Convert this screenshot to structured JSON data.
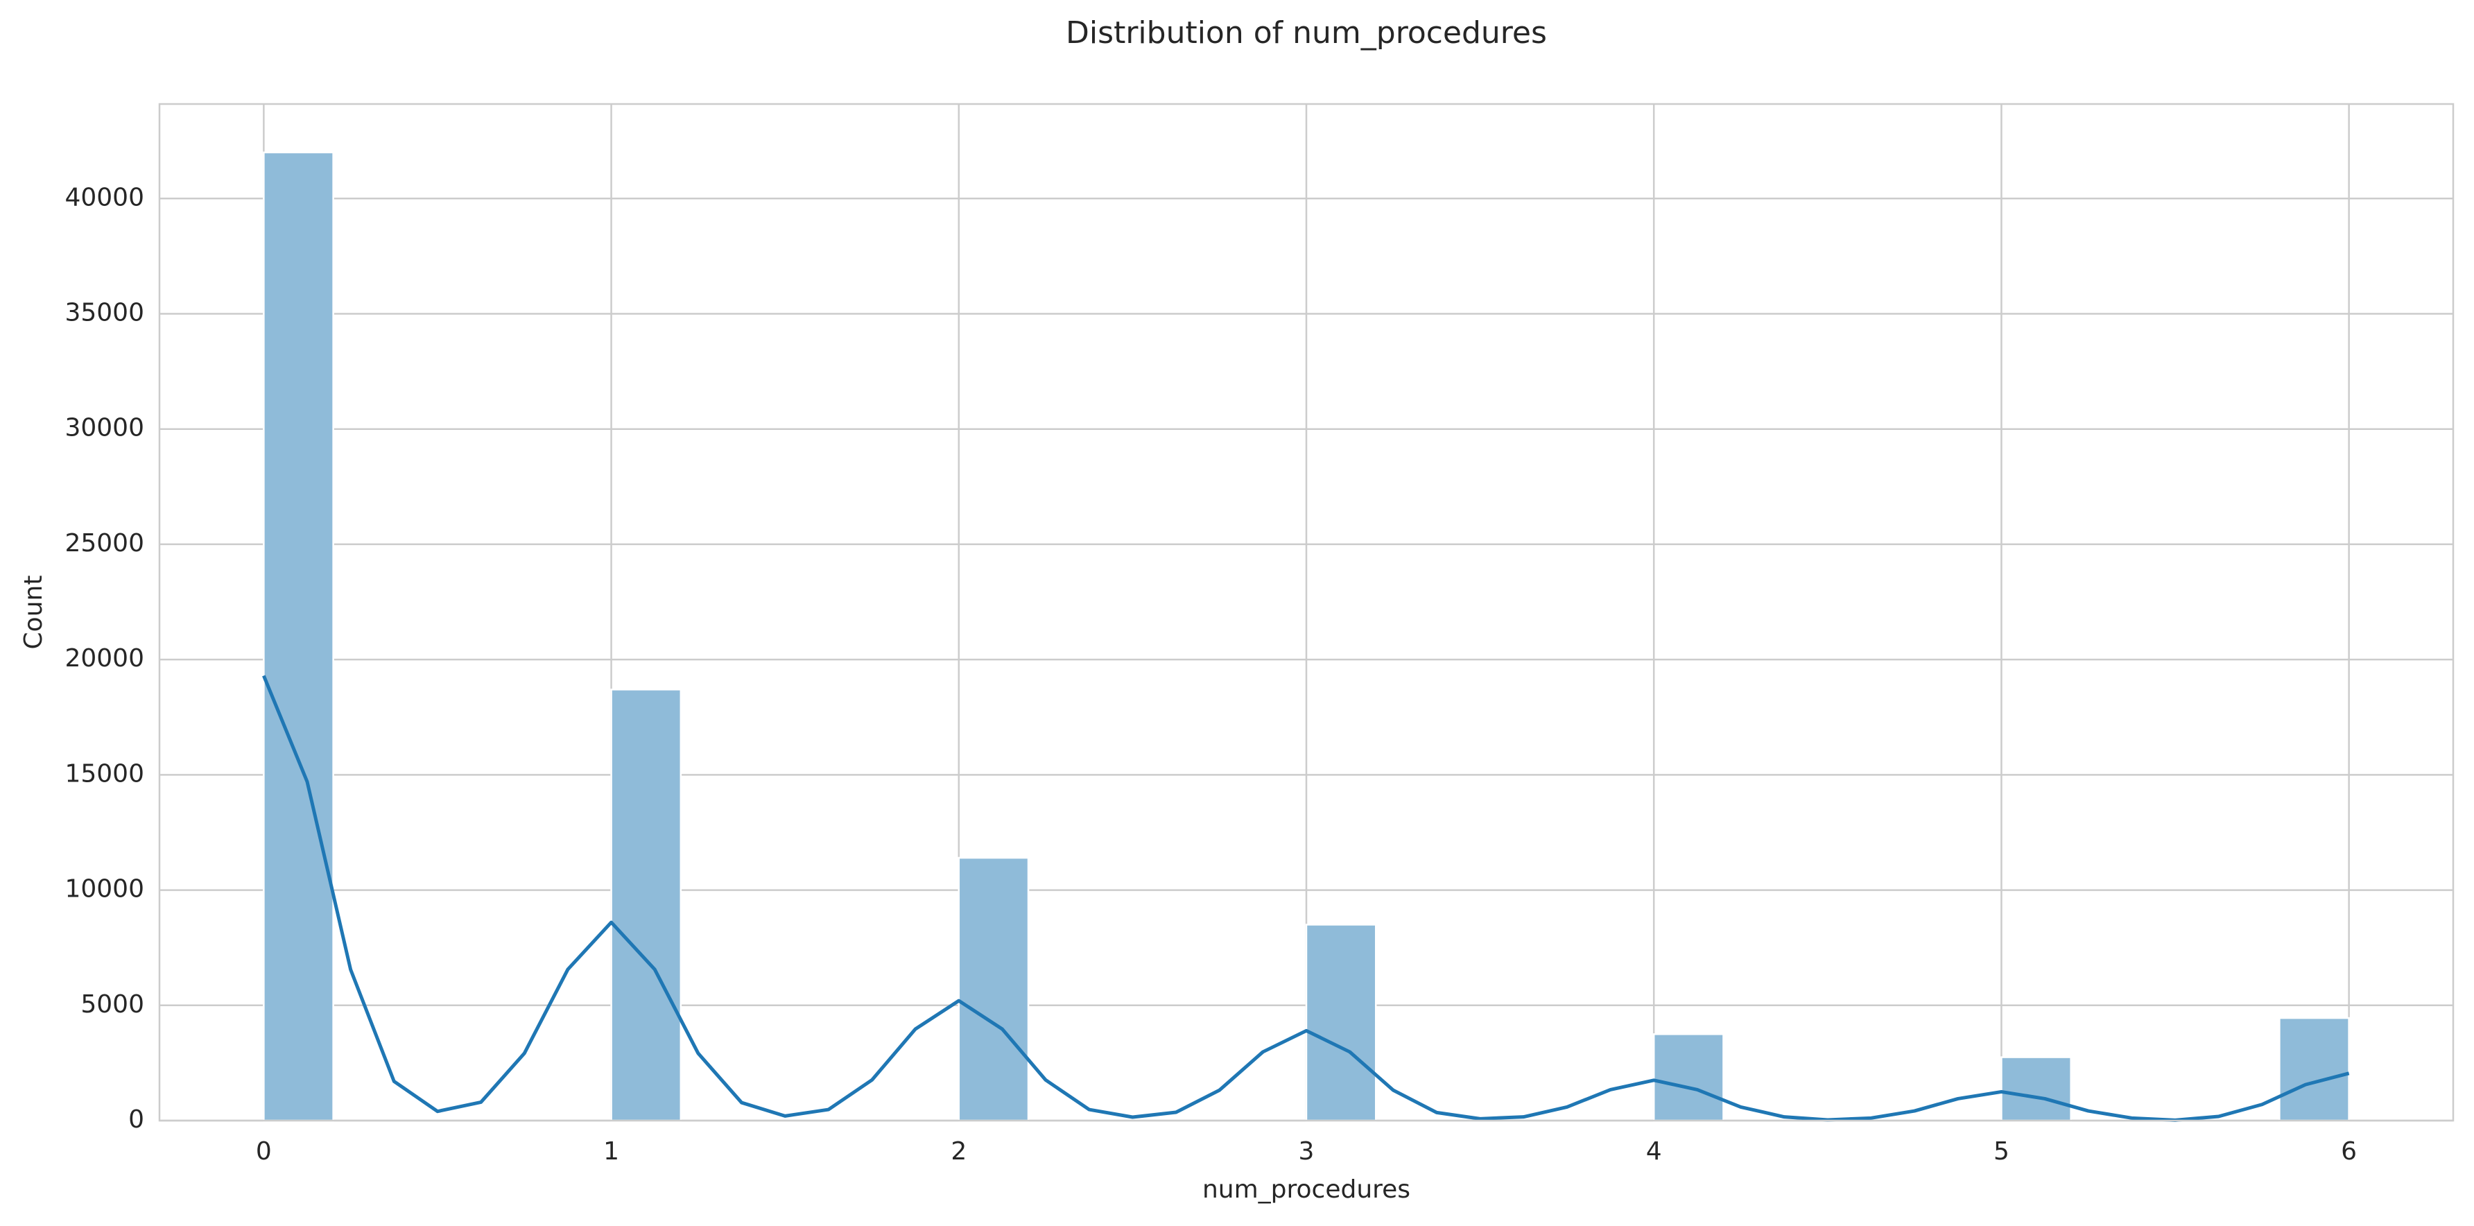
{
  "chart_data": {
    "type": "histogram",
    "title": "Distribution of num_procedures",
    "x_label": "num_procedures",
    "y_label": "Count",
    "bins": [
      0,
      0.2,
      0.4,
      0.6,
      0.8,
      1,
      1.2,
      1.4,
      1.6,
      1.8,
      2,
      2.2,
      2.4,
      2.6,
      2.8,
      3,
      3.2,
      3.4,
      3.6,
      3.8,
      4,
      4.2,
      4.4,
      4.6,
      4.8,
      5,
      5.2,
      5.4,
      5.6,
      5.8,
      6
    ],
    "values": [
      42000,
      0,
      0,
      0,
      0,
      18700,
      0,
      0,
      0,
      0,
      11400,
      0,
      0,
      0,
      0,
      8500,
      0,
      0,
      0,
      0,
      3750,
      0,
      0,
      0,
      0,
      2750,
      0,
      0,
      0,
      4450
    ],
    "color": "#8fbbd9",
    "kde": {
      "color": "#1f77b4",
      "x": [
        0,
        0.125,
        0.25,
        0.375,
        0.5,
        0.625,
        0.75,
        0.875,
        1,
        1.125,
        1.25,
        1.375,
        1.5,
        1.625,
        1.75,
        1.875,
        2,
        2.125,
        2.25,
        2.375,
        2.5,
        2.625,
        2.75,
        2.875,
        3,
        3.125,
        3.25,
        3.375,
        3.5,
        3.625,
        3.75,
        3.875,
        4,
        4.125,
        4.25,
        4.375,
        4.5,
        4.625,
        4.75,
        4.875,
        5,
        5.125,
        5.25,
        5.375,
        5.5,
        5.625,
        5.75,
        5.875,
        6
      ],
      "values": [
        19300,
        14700,
        6550,
        1700,
        400,
        800,
        2920,
        6560,
        8600,
        6560,
        2920,
        780,
        200,
        480,
        1760,
        3970,
        5200,
        3970,
        1760,
        480,
        150,
        360,
        1320,
        2980,
        3900,
        2980,
        1320,
        350,
        80,
        160,
        590,
        1340,
        1750,
        1340,
        590,
        160,
        30,
        110,
        420,
        950,
        1250,
        950,
        420,
        110,
        20,
        180,
        700,
        1560,
        2050
      ]
    },
    "xlim": [
      -0.3,
      6.3
    ],
    "xticks": [
      0,
      1,
      2,
      3,
      4,
      5,
      6
    ],
    "ylim": [
      0,
      44100
    ],
    "yticks": [
      0,
      5000,
      10000,
      15000,
      20000,
      25000,
      30000,
      35000,
      40000
    ],
    "grid": true
  }
}
